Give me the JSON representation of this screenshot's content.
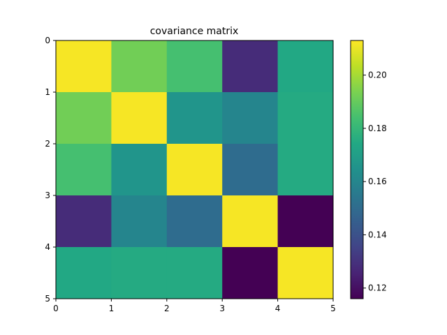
{
  "chart_data": {
    "type": "heatmap",
    "title": "covariance matrix",
    "xlabel": "",
    "ylabel": "",
    "x_ticks": [
      "0",
      "1",
      "2",
      "3",
      "4",
      "5"
    ],
    "y_ticks": [
      "0",
      "1",
      "2",
      "3",
      "4",
      "5"
    ],
    "xlim": [
      0,
      5
    ],
    "ylim": [
      5,
      0
    ],
    "values": [
      [
        0.212,
        0.192,
        0.184,
        0.128,
        0.174
      ],
      [
        0.192,
        0.212,
        0.166,
        0.16,
        0.175
      ],
      [
        0.184,
        0.166,
        0.212,
        0.15,
        0.175
      ],
      [
        0.128,
        0.16,
        0.15,
        0.212,
        0.116
      ],
      [
        0.174,
        0.175,
        0.175,
        0.116,
        0.212
      ]
    ],
    "colorbar": {
      "colormap": "viridis",
      "min": 0.116,
      "max": 0.213,
      "ticks": [
        0.12,
        0.14,
        0.16,
        0.18,
        0.2
      ],
      "tick_labels": [
        "0.12",
        "0.14",
        "0.16",
        "0.18",
        "0.20"
      ]
    },
    "grid": false
  }
}
